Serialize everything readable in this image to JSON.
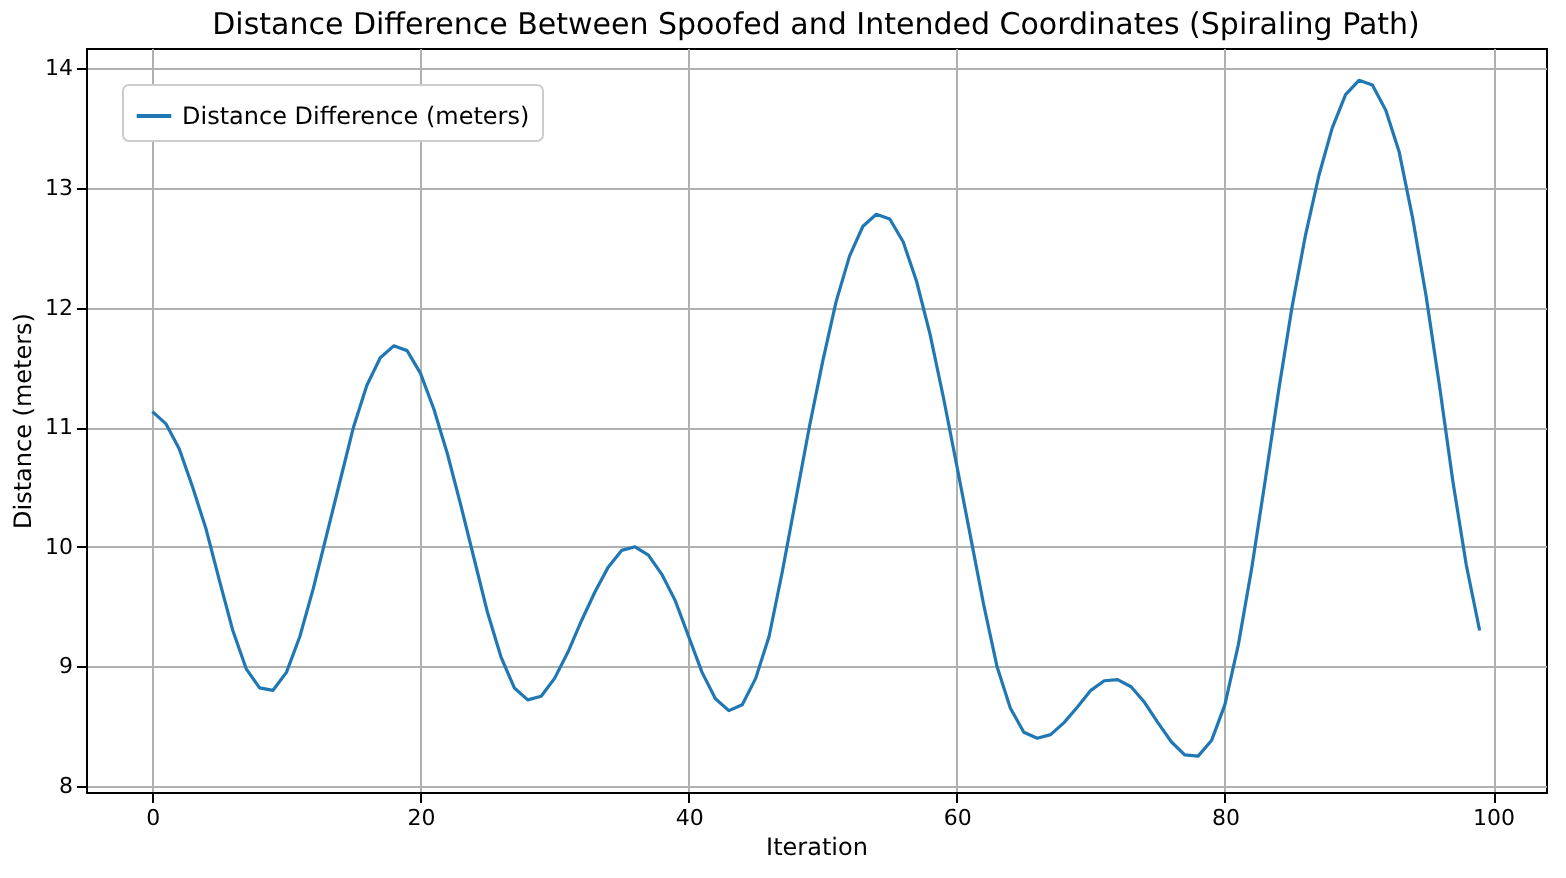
{
  "chart_data": {
    "type": "line",
    "title": "Distance Difference Between Spoofed and Intended Coordinates (Spiraling Path)",
    "xlabel": "Iteration",
    "ylabel": "Distance (meters)",
    "x": [
      0,
      1,
      2,
      3,
      4,
      5,
      6,
      7,
      8,
      9,
      10,
      11,
      12,
      13,
      14,
      15,
      16,
      17,
      18,
      19,
      20,
      21,
      22,
      23,
      24,
      25,
      26,
      27,
      28,
      29,
      30,
      31,
      32,
      33,
      34,
      35,
      36,
      37,
      38,
      39,
      40,
      41,
      42,
      43,
      44,
      45,
      46,
      47,
      48,
      49,
      50,
      51,
      52,
      53,
      54,
      55,
      56,
      57,
      58,
      59,
      60,
      61,
      62,
      63,
      64,
      65,
      66,
      67,
      68,
      69,
      70,
      71,
      72,
      73,
      74,
      75,
      76,
      77,
      78,
      79,
      80,
      81,
      82,
      83,
      84,
      85,
      86,
      87,
      88,
      89,
      90,
      91,
      92,
      93,
      94,
      95,
      96,
      97,
      98,
      99
    ],
    "series": [
      {
        "name": "Distance Difference (meters)",
        "color": "#1f77b4",
        "values": [
          11.13,
          11.03,
          10.82,
          10.5,
          10.15,
          9.72,
          9.3,
          8.98,
          8.82,
          8.8,
          8.95,
          9.25,
          9.65,
          10.1,
          10.55,
          11.0,
          11.35,
          11.58,
          11.68,
          11.64,
          11.45,
          11.15,
          10.78,
          10.35,
          9.9,
          9.45,
          9.08,
          8.82,
          8.72,
          8.75,
          8.9,
          9.12,
          9.38,
          9.62,
          9.83,
          9.97,
          10.0,
          9.93,
          9.77,
          9.55,
          9.25,
          8.95,
          8.73,
          8.63,
          8.68,
          8.9,
          9.25,
          9.8,
          10.4,
          11.0,
          11.55,
          12.05,
          12.43,
          12.68,
          12.78,
          12.74,
          12.55,
          12.22,
          11.78,
          11.25,
          10.68,
          10.1,
          9.52,
          9.0,
          8.65,
          8.45,
          8.4,
          8.43,
          8.53,
          8.66,
          8.8,
          8.88,
          8.89,
          8.83,
          8.7,
          8.53,
          8.37,
          8.26,
          8.25,
          8.38,
          8.68,
          9.18,
          9.82,
          10.55,
          11.3,
          12.0,
          12.6,
          13.1,
          13.5,
          13.78,
          13.9,
          13.86,
          13.65,
          13.3,
          12.75,
          12.1,
          11.35,
          10.55,
          9.85,
          9.3
        ]
      }
    ],
    "xlim": [
      -4.95,
      103.95
    ],
    "xticks": [
      0,
      20,
      40,
      60,
      80,
      100
    ],
    "ylim": [
      7.95,
      14.17
    ],
    "yticks": [
      8,
      9,
      10,
      11,
      12,
      13,
      14
    ],
    "grid": true,
    "legend": "top left",
    "marker": "none",
    "line_style": "solid"
  }
}
